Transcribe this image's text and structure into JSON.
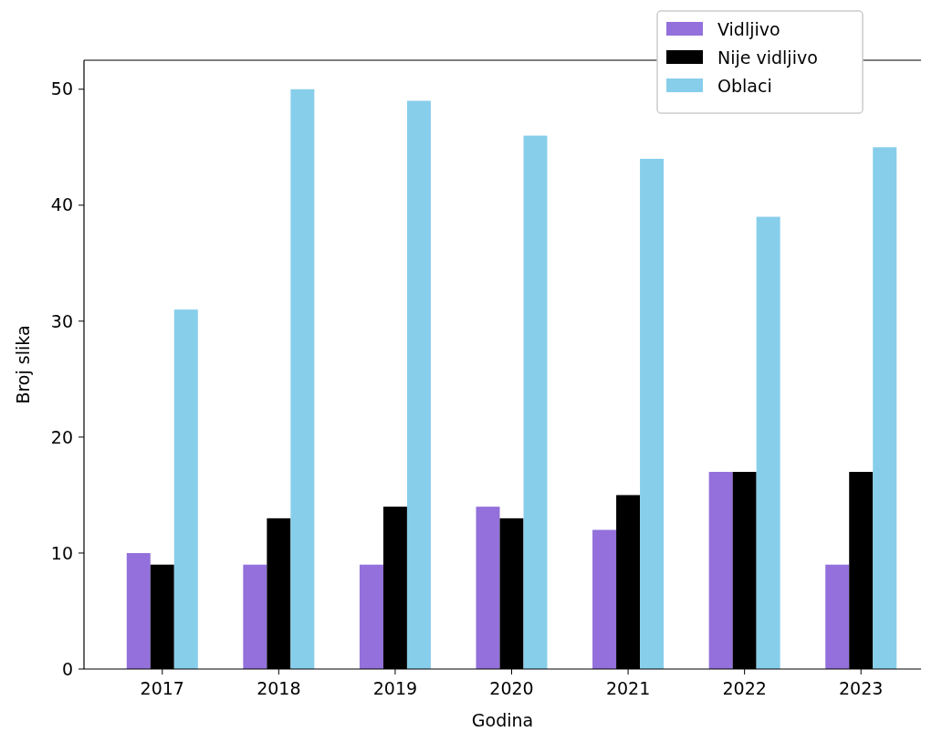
{
  "chart_data": {
    "type": "bar",
    "xlabel": "Godina",
    "ylabel": "Broj slika",
    "categories": [
      "2017",
      "2018",
      "2019",
      "2020",
      "2021",
      "2022",
      "2023"
    ],
    "series": [
      {
        "name": "Vidljivo",
        "color": "#9370db",
        "values": [
          10,
          9,
          9,
          14,
          12,
          17,
          9
        ]
      },
      {
        "name": "Nije vidljivo",
        "color": "#000000",
        "values": [
          9,
          13,
          14,
          13,
          15,
          17,
          17
        ]
      },
      {
        "name": "Oblaci",
        "color": "#87ceeb",
        "values": [
          31,
          50,
          49,
          46,
          44,
          39,
          45
        ]
      }
    ],
    "ylim": [
      0,
      52.5
    ],
    "yticks": [
      0,
      10,
      20,
      30,
      40,
      50
    ],
    "legend": "top right"
  }
}
